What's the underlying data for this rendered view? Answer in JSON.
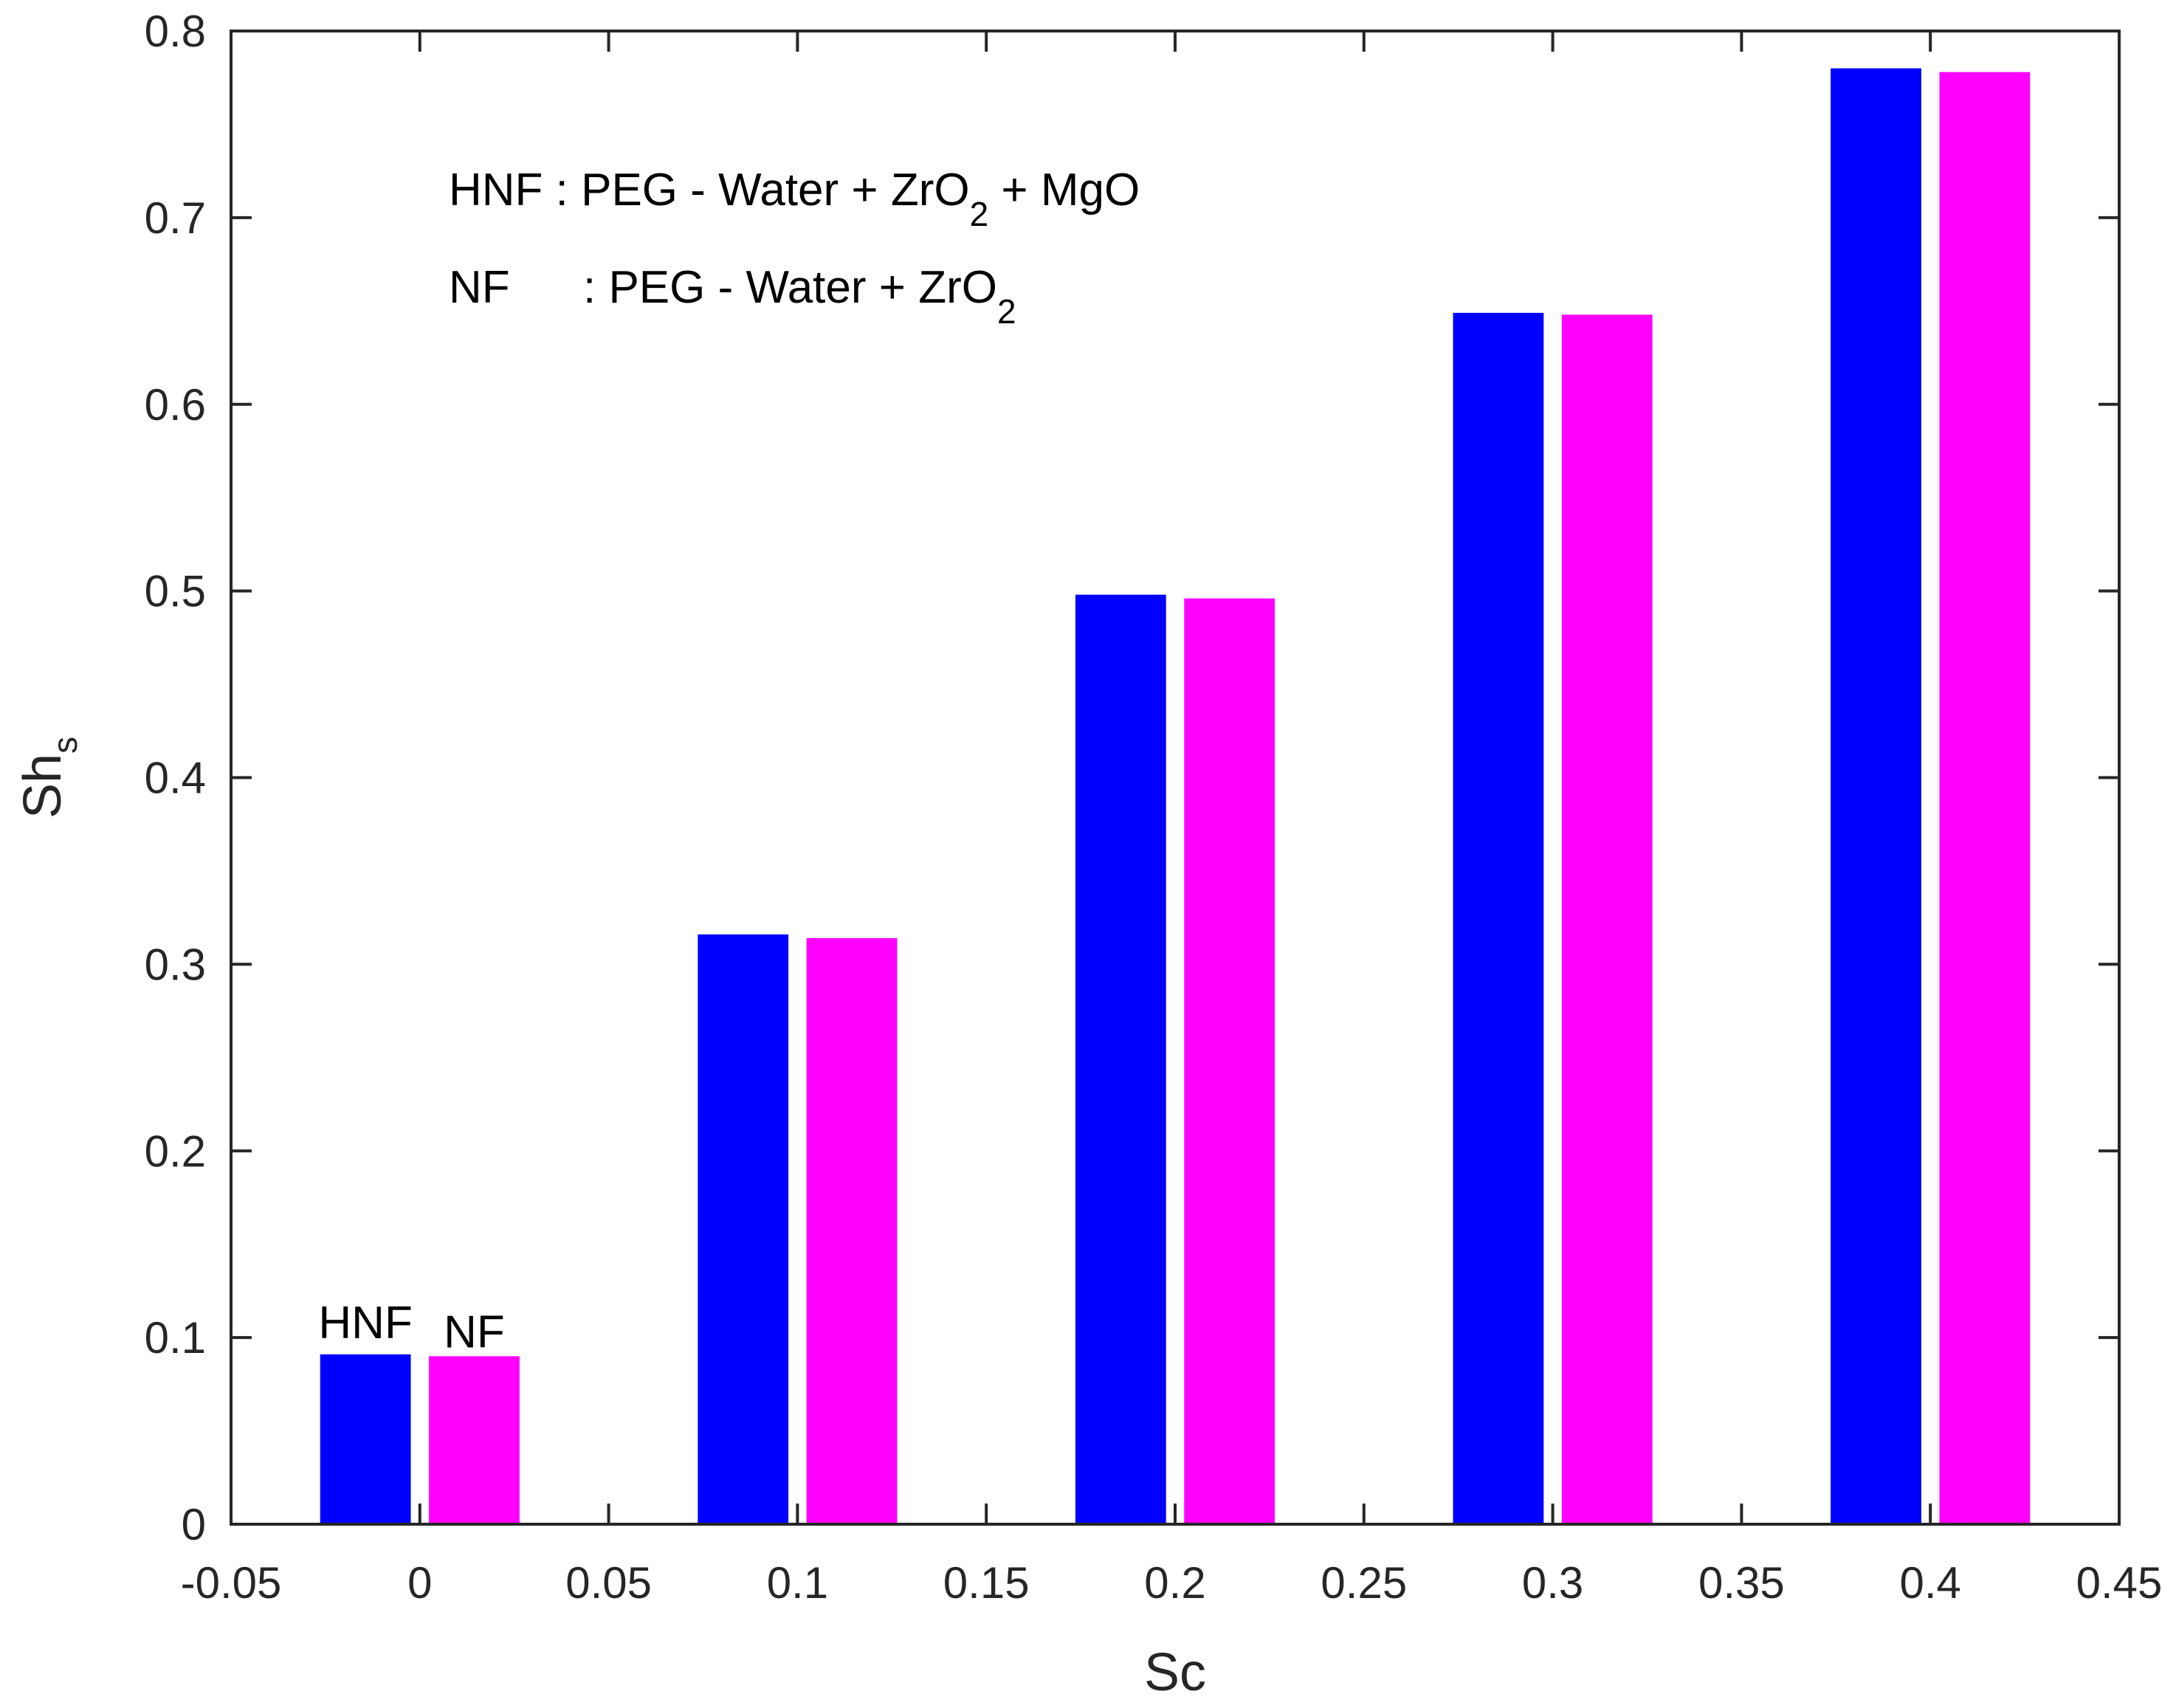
{
  "chart_data": {
    "type": "bar",
    "title": "",
    "xlabel": "Sc",
    "ylabel": {
      "base": "Sh",
      "sub": "s"
    },
    "xlim": [
      -0.05,
      0.45
    ],
    "ylim": [
      0,
      0.8
    ],
    "xticks": [
      -0.05,
      0,
      0.05,
      0.1,
      0.15,
      0.2,
      0.25,
      0.3,
      0.35,
      0.4,
      0.45
    ],
    "xtick_labels": [
      "-0.05",
      "0",
      "0.05",
      "0.1",
      "0.15",
      "0.2",
      "0.25",
      "0.3",
      "0.35",
      "0.4",
      "0.45"
    ],
    "yticks": [
      0,
      0.1,
      0.2,
      0.3,
      0.4,
      0.5,
      0.6,
      0.7,
      0.8
    ],
    "ytick_labels": [
      "0",
      "0.1",
      "0.2",
      "0.3",
      "0.4",
      "0.5",
      "0.6",
      "0.7",
      "0.8"
    ],
    "x": [
      0,
      0.1,
      0.2,
      0.3,
      0.4
    ],
    "series": [
      {
        "name": "HNF",
        "color": "#0000ff",
        "values": [
          0.091,
          0.316,
          0.498,
          0.649,
          0.78
        ]
      },
      {
        "name": "NF",
        "color": "#ff00ff",
        "values": [
          0.09,
          0.314,
          0.496,
          0.648,
          0.778
        ]
      }
    ],
    "bar_labels": [
      "HNF",
      "NF"
    ],
    "annotations": [
      {
        "parts": [
          {
            "t": "HNF : PEG - Water + ZrO"
          },
          {
            "t": "2",
            "sub": true
          },
          {
            "t": " + MgO"
          }
        ]
      },
      {
        "parts": [
          {
            "t": "NF"
          },
          {
            "t": ": PEG - Water + ZrO"
          },
          {
            "t": "2",
            "sub": true
          }
        ]
      }
    ],
    "grid": false,
    "box": true
  }
}
